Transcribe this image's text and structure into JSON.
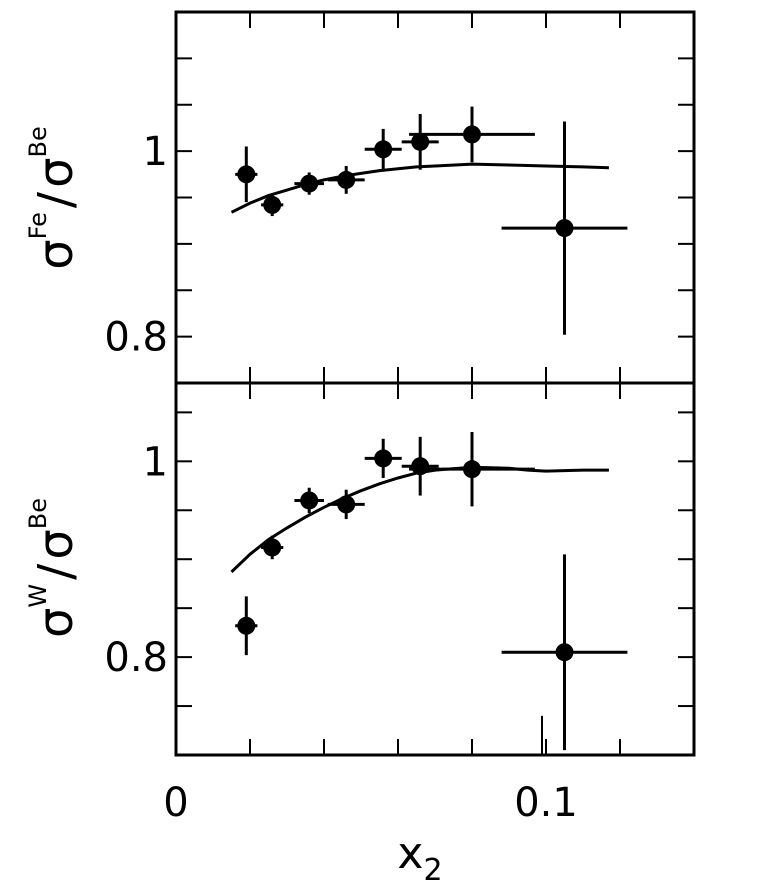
{
  "chart_data": [
    {
      "type": "scatter",
      "panel": "top",
      "ylabel": {
        "main": "σ",
        "sup": "Fe",
        "sep": "/",
        "main2": "σ",
        "sup2": "Be"
      },
      "xlim": [
        0,
        0.14
      ],
      "ylim": [
        0.75,
        1.15
      ],
      "y_tick_labels": [
        {
          "value": 1.0,
          "label": "1"
        },
        {
          "value": 0.8,
          "label": "0.8"
        }
      ],
      "series": [
        {
          "x": [
            0.019,
            0.026,
            0.036,
            0.046,
            0.056,
            0.066,
            0.08,
            0.105
          ],
          "y": [
            0.975,
            0.942,
            0.965,
            0.969,
            1.002,
            1.01,
            1.018,
            0.917
          ],
          "xerr": [
            0.003,
            0.003,
            0.004,
            0.005,
            0.005,
            0.005,
            0.017,
            0.017
          ],
          "yerr": [
            0.03,
            0.012,
            0.012,
            0.015,
            0.022,
            0.03,
            0.03,
            0.115
          ]
        }
      ],
      "curve": {
        "x": [
          0.015,
          0.02,
          0.025,
          0.03,
          0.035,
          0.04,
          0.045,
          0.05,
          0.055,
          0.06,
          0.065,
          0.07,
          0.08,
          0.09,
          0.1,
          0.11,
          0.117
        ],
        "y": [
          0.934,
          0.944,
          0.952,
          0.958,
          0.964,
          0.969,
          0.973,
          0.976,
          0.979,
          0.981,
          0.983,
          0.984,
          0.986,
          0.985,
          0.984,
          0.983,
          0.982
        ]
      }
    },
    {
      "type": "scatter",
      "panel": "bottom",
      "ylabel": {
        "main": "σ",
        "sup": "W",
        "sep": "/",
        "main2": "σ",
        "sup2": "Be"
      },
      "xlabel": {
        "main": "x",
        "sub": "2"
      },
      "xlim": [
        0,
        0.14
      ],
      "ylim": [
        0.7,
        1.08
      ],
      "x_tick_labels": [
        {
          "value": 0,
          "label": "0"
        },
        {
          "value": 0.1,
          "label": "0.1"
        }
      ],
      "y_tick_labels": [
        {
          "value": 1.0,
          "label": "1"
        },
        {
          "value": 0.8,
          "label": "0.8"
        }
      ],
      "series": [
        {
          "x": [
            0.019,
            0.026,
            0.036,
            0.046,
            0.056,
            0.066,
            0.08,
            0.105
          ],
          "y": [
            0.832,
            0.912,
            0.96,
            0.956,
            1.003,
            0.995,
            0.992,
            0.805
          ],
          "xerr": [
            0.003,
            0.003,
            0.004,
            0.005,
            0.005,
            0.005,
            0.017,
            0.017
          ],
          "yerr": [
            0.03,
            0.012,
            0.013,
            0.015,
            0.02,
            0.03,
            0.038,
            0.1
          ]
        }
      ],
      "curve": {
        "x": [
          0.015,
          0.02,
          0.025,
          0.03,
          0.035,
          0.04,
          0.045,
          0.05,
          0.055,
          0.06,
          0.065,
          0.07,
          0.08,
          0.09,
          0.095,
          0.1,
          0.11,
          0.117
        ],
        "y": [
          0.887,
          0.905,
          0.92,
          0.932,
          0.943,
          0.953,
          0.962,
          0.97,
          0.977,
          0.983,
          0.988,
          0.991,
          0.994,
          0.993,
          0.991,
          0.99,
          0.991,
          0.991
        ]
      }
    }
  ],
  "marks": {
    "bottom_stray_tick": {
      "x": 0.1,
      "y_from": 0.7,
      "y_to": 0.71
    }
  },
  "colors": {
    "ink": "#000000",
    "background": "#ffffff"
  }
}
